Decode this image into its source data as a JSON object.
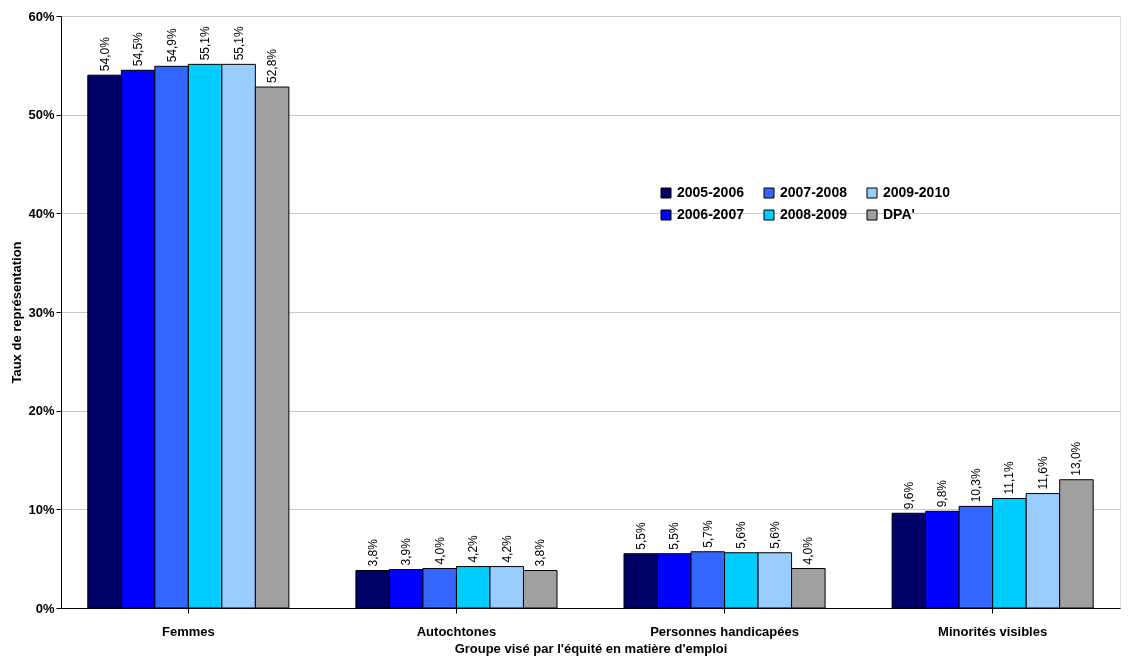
{
  "chart_data": {
    "type": "bar",
    "xlabel": "Groupe visé par l'équité en matière d'emploi",
    "ylabel": "Taux de représentation",
    "categories": [
      "Femmes",
      "Autochtones",
      "Personnes handicapées",
      "Minorités visibles"
    ],
    "series": [
      {
        "name": "2005-2006",
        "color": "#000066",
        "values": [
          54.0,
          3.8,
          5.5,
          9.6
        ],
        "value_labels": [
          "54,0%",
          "3,8%",
          "5,5%",
          "9,6%"
        ]
      },
      {
        "name": "2006-2007",
        "color": "#0000ff",
        "values": [
          54.5,
          3.9,
          5.5,
          9.8
        ],
        "value_labels": [
          "54,5%",
          "3,9%",
          "5,5%",
          "9,8%"
        ]
      },
      {
        "name": "2007-2008",
        "color": "#3366ff",
        "values": [
          54.9,
          4.0,
          5.7,
          10.3
        ],
        "value_labels": [
          "54,9%",
          "4,0%",
          "5,7%",
          "10,3%"
        ]
      },
      {
        "name": "2008-2009",
        "color": "#00ccff",
        "values": [
          55.1,
          4.2,
          5.6,
          11.1
        ],
        "value_labels": [
          "55,1%",
          "4,2%",
          "5,6%",
          "11,1%"
        ]
      },
      {
        "name": "2009-2010",
        "color": "#99ccff",
        "values": [
          55.1,
          4.2,
          5.6,
          11.6
        ],
        "value_labels": [
          "55,1%",
          "4,2%",
          "5,6%",
          "11,6%"
        ]
      },
      {
        "name": "DPA'",
        "color": "#a0a0a0",
        "values": [
          52.8,
          3.8,
          4.0,
          13.0
        ],
        "value_labels": [
          "52,8%",
          "3,8%",
          "4,0%",
          "13,0%"
        ]
      }
    ],
    "ylim": [
      0,
      60
    ],
    "yticks": [
      {
        "value": 0,
        "label": "0%"
      },
      {
        "value": 10,
        "label": "10%"
      },
      {
        "value": 20,
        "label": "20%"
      },
      {
        "value": 30,
        "label": "30%"
      },
      {
        "value": 40,
        "label": "40%"
      },
      {
        "value": 50,
        "label": "50%"
      },
      {
        "value": 60,
        "label": "60%"
      }
    ],
    "grid": "y",
    "legend": "top right"
  }
}
